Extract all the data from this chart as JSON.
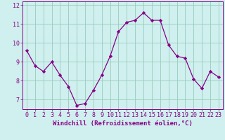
{
  "x": [
    0,
    1,
    2,
    3,
    4,
    5,
    6,
    7,
    8,
    9,
    10,
    11,
    12,
    13,
    14,
    15,
    16,
    17,
    18,
    19,
    20,
    21,
    22,
    23
  ],
  "y": [
    9.6,
    8.8,
    8.5,
    9.0,
    8.3,
    7.7,
    6.7,
    6.8,
    7.5,
    8.3,
    9.3,
    10.6,
    11.1,
    11.2,
    11.6,
    11.2,
    11.2,
    9.9,
    9.3,
    9.2,
    8.1,
    7.6,
    8.5,
    8.2
  ],
  "line_color": "#880088",
  "marker": "D",
  "markersize": 2.2,
  "linewidth": 0.9,
  "bg_color": "#cff0ee",
  "grid_color": "#99ccbb",
  "xlabel": "Windchill (Refroidissement éolien,°C)",
  "xlabel_fontsize": 6.5,
  "tick_fontsize": 6.0,
  "xlim": [
    -0.5,
    23.5
  ],
  "ylim": [
    6.5,
    12.2
  ],
  "yticks": [
    7,
    8,
    9,
    10,
    11,
    12
  ],
  "xticks": [
    0,
    1,
    2,
    3,
    4,
    5,
    6,
    7,
    8,
    9,
    10,
    11,
    12,
    13,
    14,
    15,
    16,
    17,
    18,
    19,
    20,
    21,
    22,
    23
  ]
}
